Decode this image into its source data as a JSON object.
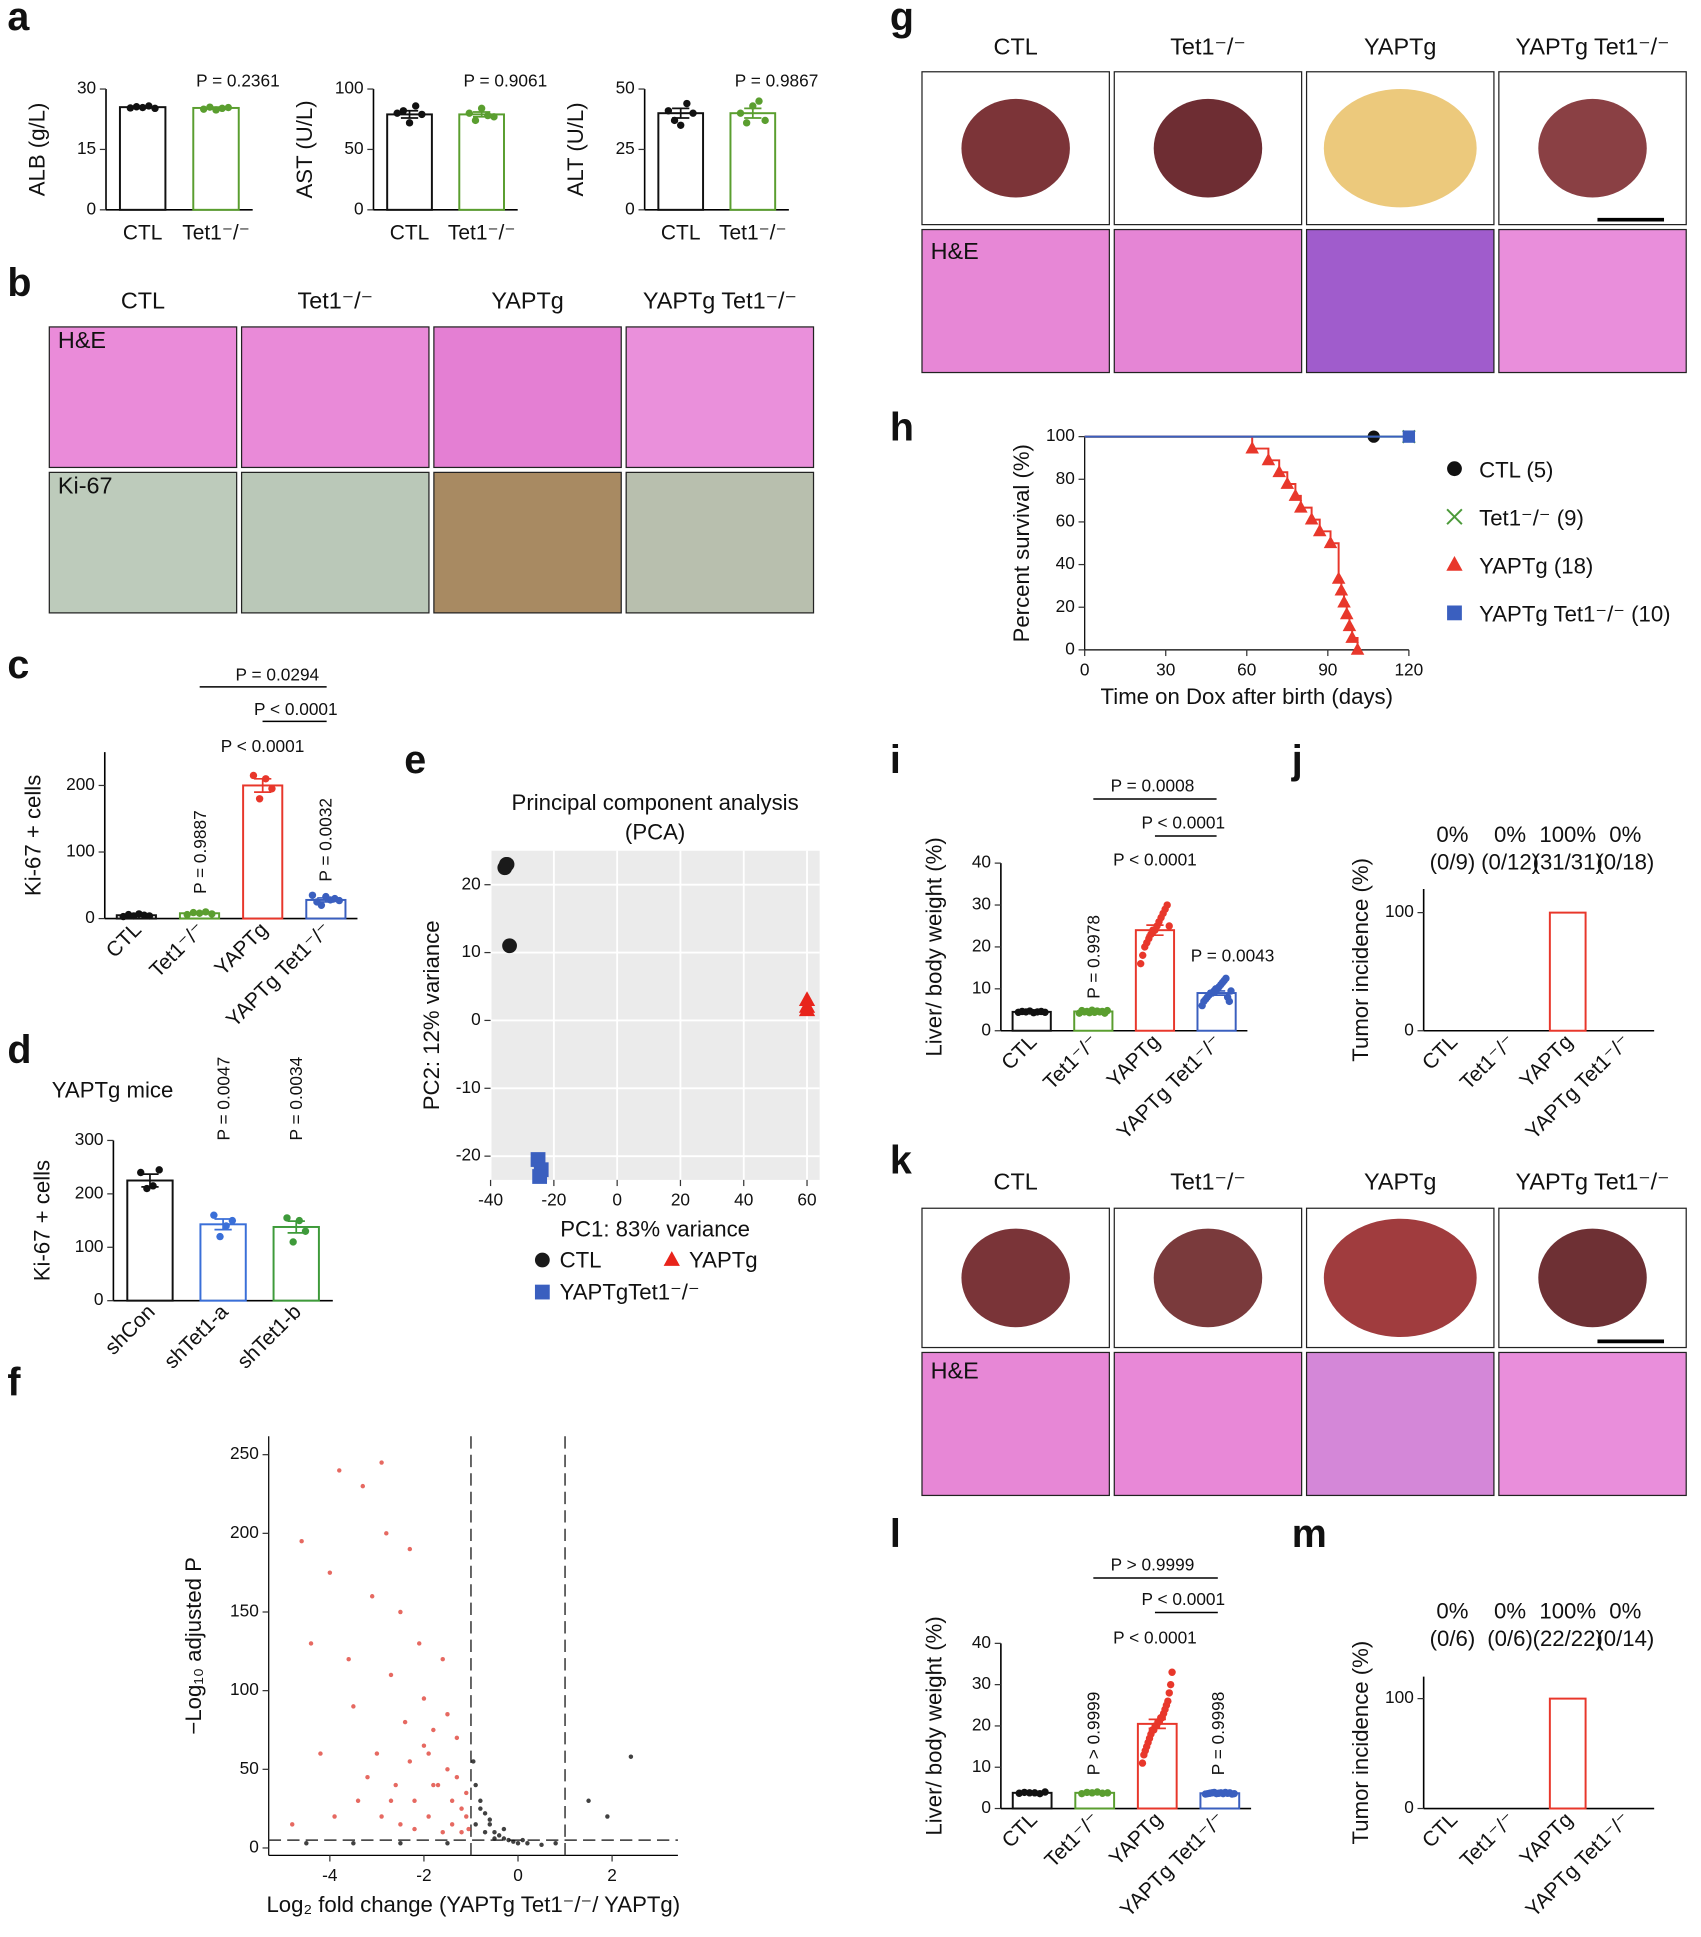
{
  "panel_labels": [
    "a",
    "b",
    "c",
    "d",
    "e",
    "f",
    "g",
    "h",
    "i",
    "j",
    "k",
    "l",
    "m"
  ],
  "image_panels": {
    "b": {
      "columns": [
        "CTL",
        "Tet1⁻/⁻",
        "YAPTg",
        "YAPTg Tet1⁻/⁻"
      ],
      "row_labels": [
        "H&E",
        "Ki-67"
      ]
    },
    "g": {
      "columns": [
        "CTL",
        "Tet1⁻/⁻",
        "YAPTg",
        "YAPTg Tet1⁻/⁻"
      ],
      "row_labels": [
        "H&E"
      ]
    },
    "k": {
      "columns": [
        "CTL",
        "Tet1⁻/⁻",
        "YAPTg",
        "YAPTg Tet1⁻/⁻"
      ],
      "row_labels": [
        "H&E"
      ]
    }
  },
  "chart_data": [
    {
      "type": "bar",
      "ylabel": "ALB (g/L)",
      "categories": [
        "CTL",
        "Tet1⁻/⁻"
      ],
      "colors": [
        "#111111",
        "#5a9e2f"
      ],
      "values": [
        25.5,
        25.3
      ],
      "errors": [
        0.2,
        0.2
      ],
      "points": [
        [
          25.3,
          25.6,
          25.4,
          25.8,
          25.2
        ],
        [
          25,
          25.5,
          24.8,
          25.2,
          25.4
        ]
      ],
      "ylim": [
        0,
        30
      ],
      "yticks": [
        0,
        15,
        30
      ],
      "annotations": [
        "P = 0.2361"
      ]
    },
    {
      "type": "bar",
      "ylabel": "AST (U/L)",
      "categories": [
        "CTL",
        "Tet1⁻/⁻"
      ],
      "colors": [
        "#111111",
        "#5a9e2f"
      ],
      "values": [
        79,
        79
      ],
      "errors": [
        3,
        2
      ],
      "points": [
        [
          80,
          82,
          72,
          86,
          79
        ],
        [
          80,
          74,
          84,
          78,
          77
        ]
      ],
      "ylim": [
        0,
        100
      ],
      "yticks": [
        0,
        50,
        100
      ],
      "annotations": [
        "P = 0.9061"
      ]
    },
    {
      "type": "bar",
      "ylabel": "ALT (U/L)",
      "categories": [
        "CTL",
        "Tet1⁻/⁻"
      ],
      "colors": [
        "#111111",
        "#5a9e2f"
      ],
      "values": [
        40,
        40
      ],
      "errors": [
        2,
        2
      ],
      "points": [
        [
          41,
          37,
          35,
          44,
          40
        ],
        [
          40,
          36,
          43,
          45,
          37
        ]
      ],
      "ylim": [
        0,
        50
      ],
      "yticks": [
        0,
        25,
        50
      ],
      "annotations": [
        "P = 0.9867"
      ]
    },
    {
      "type": "bar",
      "ylabel": "Ki-67 + cells",
      "categories": [
        "CTL",
        "Tet1⁻/⁻",
        "YAPTg",
        "YAPTg Tet1⁻/⁻"
      ],
      "colors": [
        "#111111",
        "#5a9e2f",
        "#e8372b",
        "#3a5fbf"
      ],
      "values": [
        5,
        8,
        200,
        28
      ],
      "errors": [
        1,
        1,
        10,
        3
      ],
      "points": [
        [
          3,
          6,
          4,
          7,
          5,
          4
        ],
        [
          6,
          9,
          8,
          10,
          7
        ],
        [
          215,
          180,
          210,
          195
        ],
        [
          35,
          25,
          20,
          33,
          28,
          30,
          27
        ]
      ],
      "ylim": [
        0,
        250
      ],
      "yticks": [
        0,
        100,
        200
      ],
      "annotations": [
        "P = 0.0294",
        "P < 0.0001",
        "P < 0.0001",
        "P = 0.9887",
        "P = 0.0032"
      ]
    },
    {
      "type": "bar",
      "title": "YAPTg mice",
      "ylabel": "Ki-67 + cells",
      "categories": [
        "shCon",
        "shTet1-a",
        "shTet1-b"
      ],
      "colors": [
        "#111111",
        "#3a6fd8",
        "#3e9a3a"
      ],
      "values": [
        225,
        143,
        138
      ],
      "errors": [
        12,
        10,
        11
      ],
      "points": [
        [
          240,
          210,
          215,
          245
        ],
        [
          160,
          120,
          140,
          150
        ],
        [
          155,
          110,
          150,
          130
        ]
      ],
      "ylim": [
        0,
        300
      ],
      "yticks": [
        0,
        100,
        200,
        300
      ],
      "annotations": [
        "P = 0.0047",
        "P = 0.0034"
      ]
    },
    {
      "type": "scatter",
      "title": [
        "Principal component analysis",
        "(PCA)"
      ],
      "xlabel": "PC1: 83% variance",
      "ylabel": "PC2: 12% variance",
      "background": "#ebebeb",
      "grid": true,
      "xlim": [
        -40,
        64
      ],
      "ylim": [
        -23.5,
        25
      ],
      "xticks": [
        -40,
        -20,
        0,
        20,
        40,
        60
      ],
      "yticks": [
        -20,
        -10,
        0,
        10,
        20
      ],
      "series": [
        {
          "name": "CTL",
          "color": "#1a1a1a",
          "marker": "circle",
          "x": [
            -35,
            -35.5,
            -34.8,
            -34
          ],
          "values": [
            23,
            22.5,
            23,
            11
          ]
        },
        {
          "name": "YAPTg",
          "color": "#e8241b",
          "marker": "triangle",
          "x": [
            60,
            60,
            60
          ],
          "values": [
            3,
            2,
            1.5
          ]
        },
        {
          "name": "YAPTgTet1⁻/⁻",
          "color": "#3a5fbf",
          "marker": "square",
          "x": [
            -25,
            -24,
            -24.5
          ],
          "values": [
            -20.5,
            -22,
            -23
          ]
        }
      ]
    },
    {
      "type": "scatter",
      "xlabel": "Log₂ fold change (YAPTg Tet1⁻/⁻/ YAPTg)",
      "ylabel": "−Log₁₀ adjusted P",
      "xlim": [
        -5.3,
        3.4
      ],
      "ylim": [
        -4.7,
        261.7
      ],
      "xticks": [
        -4,
        -2,
        0,
        2
      ],
      "yticks": [
        0,
        50,
        100,
        150,
        200,
        250
      ],
      "x_thresholds": [
        -1,
        1
      ],
      "y_threshold": 5,
      "series": [
        {
          "color": "#e0443a",
          "x": [
            -4.6,
            -4.4,
            -4.2,
            -4.0,
            -3.8,
            -3.6,
            -3.5,
            -3.3,
            -3.1,
            -3.0,
            -2.9,
            -2.8,
            -2.7,
            -2.6,
            -2.5,
            -2.4,
            -2.3,
            -2.2,
            -2.1,
            -2.0,
            -1.9,
            -1.8,
            -1.7,
            -1.6,
            -1.5,
            -1.4,
            -1.3,
            -1.2,
            -1.1,
            -4.8,
            -3.9,
            -3.4,
            -2.9,
            -2.5,
            -2.2,
            -1.9,
            -1.6,
            -1.4,
            -1.2,
            -3.2,
            -2.7,
            -2.3,
            -2.0,
            -1.8,
            -1.5,
            -1.3,
            -1.1,
            -1.05
          ],
          "values": [
            195,
            130,
            60,
            175,
            240,
            120,
            90,
            230,
            160,
            60,
            245,
            200,
            110,
            40,
            150,
            80,
            190,
            30,
            130,
            95,
            60,
            75,
            40,
            120,
            50,
            30,
            70,
            25,
            20,
            15,
            20,
            30,
            20,
            15,
            12,
            20,
            10,
            15,
            10,
            45,
            30,
            55,
            65,
            40,
            85,
            45,
            35,
            12
          ]
        },
        {
          "color": "#111111",
          "x": [
            -4.5,
            -3.5,
            -2.5,
            -1.5,
            -0.9,
            -0.8,
            -0.7,
            -0.6,
            -0.5,
            -0.4,
            -0.3,
            -0.2,
            -0.1,
            0,
            0.2,
            0.5,
            -0.9,
            -0.7,
            -0.5,
            -0.8,
            -0.6,
            -0.95,
            1.5,
            2.4,
            1.9,
            -0.3,
            0.1,
            0.8
          ],
          "values": [
            3,
            3,
            3,
            3,
            40,
            30,
            22,
            15,
            10,
            8,
            6,
            5,
            4,
            3,
            3,
            2,
            15,
            10,
            6,
            25,
            18,
            55,
            30,
            58,
            20,
            12,
            5,
            3
          ]
        }
      ]
    },
    {
      "type": "line",
      "step": true,
      "xlabel": "Time on Dox after birth (days)",
      "ylabel": "Percent survival (%)",
      "xlim": [
        0,
        120
      ],
      "ylim": [
        0,
        100
      ],
      "xticks": [
        0,
        30,
        60,
        90,
        120
      ],
      "yticks": [
        0,
        20,
        40,
        60,
        80,
        100
      ],
      "series": [
        {
          "name": "CTL (5)",
          "color": "#111111",
          "marker": "circle",
          "x": [
            0,
            107
          ],
          "values": [
            100,
            100
          ]
        },
        {
          "name": "Tet1⁻/⁻ (9)",
          "color": "#4c9a3a",
          "marker": "x",
          "x": [
            0,
            120
          ],
          "values": [
            100,
            100
          ]
        },
        {
          "name": "YAPTg (18)",
          "color": "#e8372b",
          "marker": "triangle",
          "x": [
            0,
            62,
            68,
            72,
            75,
            78,
            80,
            84,
            87,
            91,
            94,
            95,
            96,
            97,
            98,
            99,
            101
          ],
          "values": [
            100,
            94.4,
            88.9,
            83.3,
            77.8,
            72.2,
            66.7,
            61.1,
            55.6,
            50,
            33.3,
            27.8,
            22.2,
            16.7,
            11.1,
            5.6,
            0
          ]
        },
        {
          "name": "YAPTg Tet1⁻/⁻ (10)",
          "color": "#3a5fbf",
          "marker": "square",
          "x": [
            0,
            120
          ],
          "values": [
            100,
            100
          ]
        }
      ]
    },
    {
      "type": "bar",
      "ylabel": "Liver/ body weight (%)",
      "categories": [
        "CTL",
        "Tet1⁻/⁻",
        "YAPTg",
        "YAPTg Tet1⁻/⁻"
      ],
      "colors": [
        "#111111",
        "#5a9e2f",
        "#e8372b",
        "#3a5fbf"
      ],
      "values": [
        4.5,
        4.6,
        24,
        9
      ],
      "errors": [
        0.2,
        0.2,
        1.2,
        0.5
      ],
      "points": [
        [
          4.4,
          4.6,
          4.5,
          4.7,
          4.3,
          4.5,
          4.6,
          4.4
        ],
        [
          4.2,
          4.8,
          4.5,
          4.6,
          4.3,
          4.9,
          4.4,
          4.7,
          4.5,
          4.6,
          4.2,
          4.8
        ],
        [
          16,
          18,
          20,
          21,
          22,
          23,
          24,
          24,
          25,
          26,
          27,
          28,
          29,
          30,
          25
        ],
        [
          6,
          7,
          7.5,
          8,
          8.5,
          9,
          9,
          9.5,
          10,
          10,
          10.5,
          11,
          11.5,
          12,
          12.5,
          8,
          7,
          9.5
        ]
      ],
      "ylim": [
        0,
        40
      ],
      "yticks": [
        0,
        10,
        20,
        30,
        40
      ],
      "annotations": [
        "P = 0.0008",
        "P < 0.0001",
        "P < 0.0001",
        "P = 0.9978",
        "P = 0.0043"
      ]
    },
    {
      "type": "bar",
      "ylabel": "Tumor incidence (%)",
      "categories": [
        "CTL",
        "Tet1⁻/⁻",
        "YAPTg",
        "YAPTg Tet1⁻/⁻"
      ],
      "colors": [
        "#111111",
        "#111111",
        "#e8372b",
        "#111111"
      ],
      "values": [
        0,
        0,
        100,
        0
      ],
      "value_labels": [
        "0%",
        "0%",
        "100%",
        "0%"
      ],
      "counts": [
        "(0/9)",
        "(0/12)",
        "(31/31)",
        "(0/18)"
      ],
      "ylim": [
        0,
        120
      ],
      "yticks": [
        0,
        100
      ]
    },
    {
      "type": "bar",
      "ylabel": "Liver/ body weight (%)",
      "categories": [
        "CTL",
        "Tet1⁻/⁻",
        "YAPTg",
        "YAPTg Tet1⁻/⁻"
      ],
      "colors": [
        "#111111",
        "#5a9e2f",
        "#e8372b",
        "#3a5fbf"
      ],
      "values": [
        3.8,
        3.8,
        20.5,
        3.7
      ],
      "errors": [
        0.1,
        0.1,
        1.1,
        0.1
      ],
      "points": [
        [
          3.7,
          3.9,
          3.8,
          3.8,
          3.6,
          4.0
        ],
        [
          3.6,
          3.9,
          3.8,
          4.0,
          3.7,
          3.8
        ],
        [
          11,
          13,
          14,
          15,
          16,
          17,
          18,
          19,
          19,
          20,
          20,
          21,
          21,
          22,
          22,
          23,
          24,
          25,
          26,
          28,
          30,
          33
        ],
        [
          3.5,
          3.6,
          3.7,
          3.8,
          3.9,
          3.6,
          3.7,
          3.8,
          3.6,
          3.9,
          3.7,
          3.8,
          3.5,
          3.6
        ]
      ],
      "ylim": [
        0,
        40
      ],
      "yticks": [
        0,
        10,
        20,
        30,
        40
      ],
      "annotations": [
        "P > 0.9999",
        "P < 0.0001",
        "P < 0.0001",
        "P > 0.9999",
        "P = 0.9998"
      ]
    },
    {
      "type": "bar",
      "ylabel": "Tumor incidence (%)",
      "categories": [
        "CTL",
        "Tet1⁻/⁻",
        "YAPTg",
        "YAPTg Tet1⁻/⁻"
      ],
      "colors": [
        "#111111",
        "#111111",
        "#e8372b",
        "#111111"
      ],
      "values": [
        0,
        0,
        100,
        0
      ],
      "value_labels": [
        "0%",
        "0%",
        "100%",
        "0%"
      ],
      "counts": [
        "(0/6)",
        "(0/6)",
        "(22/22)",
        "(0/14)"
      ],
      "ylim": [
        0,
        120
      ],
      "yticks": [
        0,
        100
      ]
    }
  ]
}
